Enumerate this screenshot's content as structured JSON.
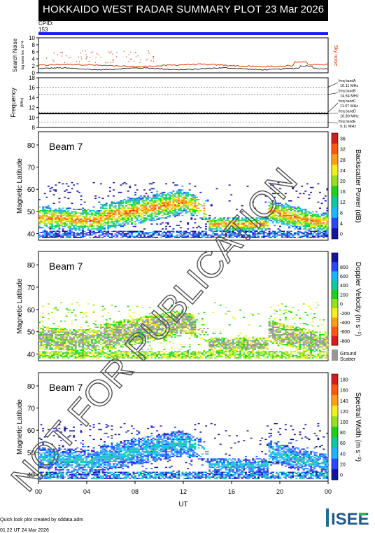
{
  "header": {
    "title": "HOKKAIDO WEST RADAR SUMMARY PLOT",
    "date": "23 Mar 2026"
  },
  "cpid": {
    "label": "CPID:",
    "value": "153"
  },
  "watermark": "NOT FOR PUBLICATION",
  "footer": {
    "credit": "Quick look plot created by sddata.adm",
    "timestamp": "01:22 UT 24 Mar 2026",
    "logo_text": "ISEE"
  },
  "chart_data": [
    {
      "type": "line",
      "ylabel": "Search Noise",
      "ylabel_sub": "log noise lev. 10^4",
      "ylim": [
        0,
        10
      ],
      "yticks": [
        0,
        2,
        4,
        6,
        8,
        10
      ],
      "right_label": "Sky noise",
      "colors": {
        "search": "#000000",
        "sky": "#d43c00"
      }
    },
    {
      "type": "line",
      "ylabel": "Frequency",
      "ylabel_sub": "(MHz)",
      "ylim": [
        8,
        18
      ],
      "yticks": [
        8,
        10,
        12,
        14,
        16,
        18
      ],
      "bands": [
        {
          "label": "freq bandA",
          "value": "16.11 MHz",
          "freq": 16.11
        },
        {
          "label": "freq bandB",
          "value": "14.64 MHz",
          "freq": 14.64
        },
        {
          "label": "freq bandC",
          "value": "11.07 MHz",
          "freq": 11.07
        },
        {
          "label": "freq bandD",
          "value": "10.80 MHz",
          "freq": 10.8
        },
        {
          "label": "freq bandE",
          "value": "9.11 MHz",
          "freq": 9.11
        }
      ],
      "operating_freq": 10.8
    },
    {
      "type": "heatmap",
      "beam_label": "Beam  7",
      "ylabel": "Magnetic Latitude",
      "ylim": [
        37,
        86
      ],
      "yticks": [
        40,
        50,
        60,
        70,
        80
      ],
      "colorbar_label": "Backscatter Power (dB)",
      "colorbar_ticks": [
        "0",
        "4",
        "8",
        "12",
        "16",
        "20",
        "24",
        "28",
        "32",
        "36"
      ],
      "colorbar_colors": [
        "#1414a0",
        "#2a48ff",
        "#1fb4ff",
        "#10c8a0",
        "#1bd21b",
        "#96e01e",
        "#f0f01e",
        "#ffa014",
        "#ff5a0a",
        "#d21e1e"
      ]
    },
    {
      "type": "heatmap",
      "beam_label": "Beam  7",
      "ylabel": "Magnetic Latitude",
      "ylim": [
        37,
        86
      ],
      "yticks": [
        40,
        50,
        60,
        70,
        80
      ],
      "colorbar_label": "Doppler Velocity (m s⁻¹)",
      "colorbar_ticks": [
        "-800",
        "-600",
        "-400",
        "-200",
        "0",
        "200",
        "400",
        "600",
        "800"
      ],
      "colorbar_colors": [
        "#d21e1e",
        "#ff5a0a",
        "#ffa014",
        "#f0f01e",
        "#96e01e",
        "#1bd21b",
        "#10c8a0",
        "#1fb4ff",
        "#2a48ff",
        "#1414a0"
      ],
      "ground_label": "Ground",
      "ground_label2": "Scatter",
      "ground_color": "#969696"
    },
    {
      "type": "heatmap",
      "beam_label": "Beam  7",
      "ylabel": "Magnetic Latitude",
      "ylim": [
        37,
        86
      ],
      "yticks": [
        40,
        50,
        60,
        70,
        80
      ],
      "colorbar_label": "Spectral Width (m s⁻¹)",
      "colorbar_ticks": [
        "0",
        "20",
        "40",
        "60",
        "80",
        "100",
        "120",
        "140",
        "160",
        "180"
      ],
      "colorbar_colors": [
        "#1414a0",
        "#2a48ff",
        "#1fb4ff",
        "#10c8a0",
        "#1bd21b",
        "#96e01e",
        "#f0f01e",
        "#ffa014",
        "#ff5a0a",
        "#d21e1e"
      ],
      "xlabel": "UT",
      "xticks": [
        "00",
        "04",
        "08",
        "12",
        "16",
        "20",
        "00"
      ],
      "xlim_hours": [
        0,
        24
      ]
    }
  ]
}
